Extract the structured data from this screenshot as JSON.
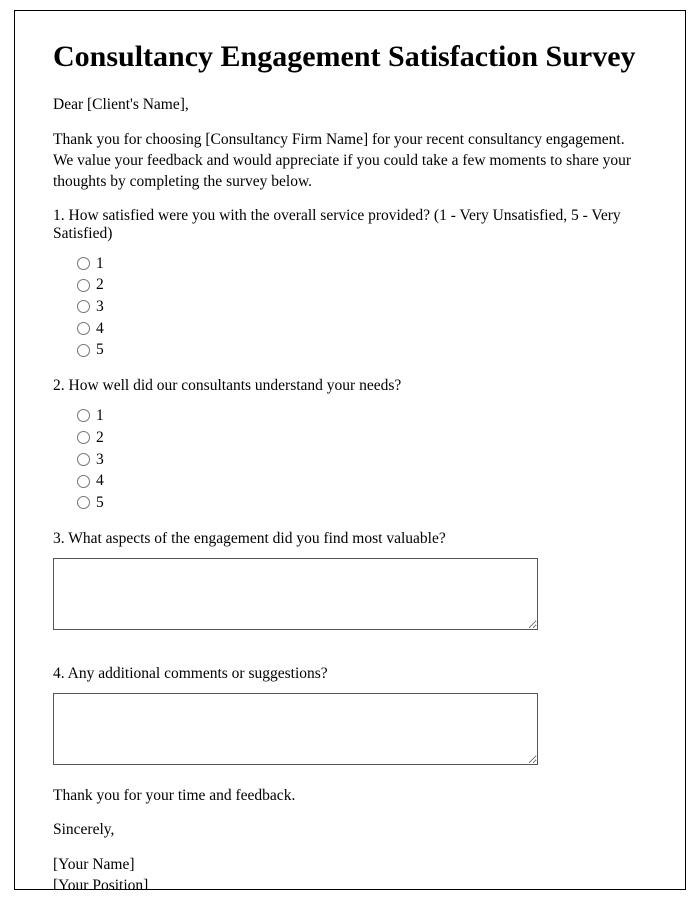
{
  "title": "Consultancy Engagement Satisfaction Survey",
  "greeting": "Dear [Client's Name],",
  "intro": "Thank you for choosing [Consultancy Firm Name] for your recent consultancy engagement. We value your feedback and would appreciate if you could take a few moments to share your thoughts by completing the survey below.",
  "q1": {
    "text": "1. How satisfied were you with the overall service provided? (1 - Very Unsatisfied, 5 - Very Satisfied)",
    "options": [
      "1",
      "2",
      "3",
      "4",
      "5"
    ]
  },
  "q2": {
    "text": "2. How well did our consultants understand your needs?",
    "options": [
      "1",
      "2",
      "3",
      "4",
      "5"
    ]
  },
  "q3": {
    "text": "3. What aspects of the engagement did you find most valuable?"
  },
  "q4": {
    "text": "4. Any additional comments or suggestions?"
  },
  "thanks": "Thank you for your time and feedback.",
  "signoff": "Sincerely,",
  "sig_name": "[Your Name]",
  "sig_position": "[Your Position]"
}
